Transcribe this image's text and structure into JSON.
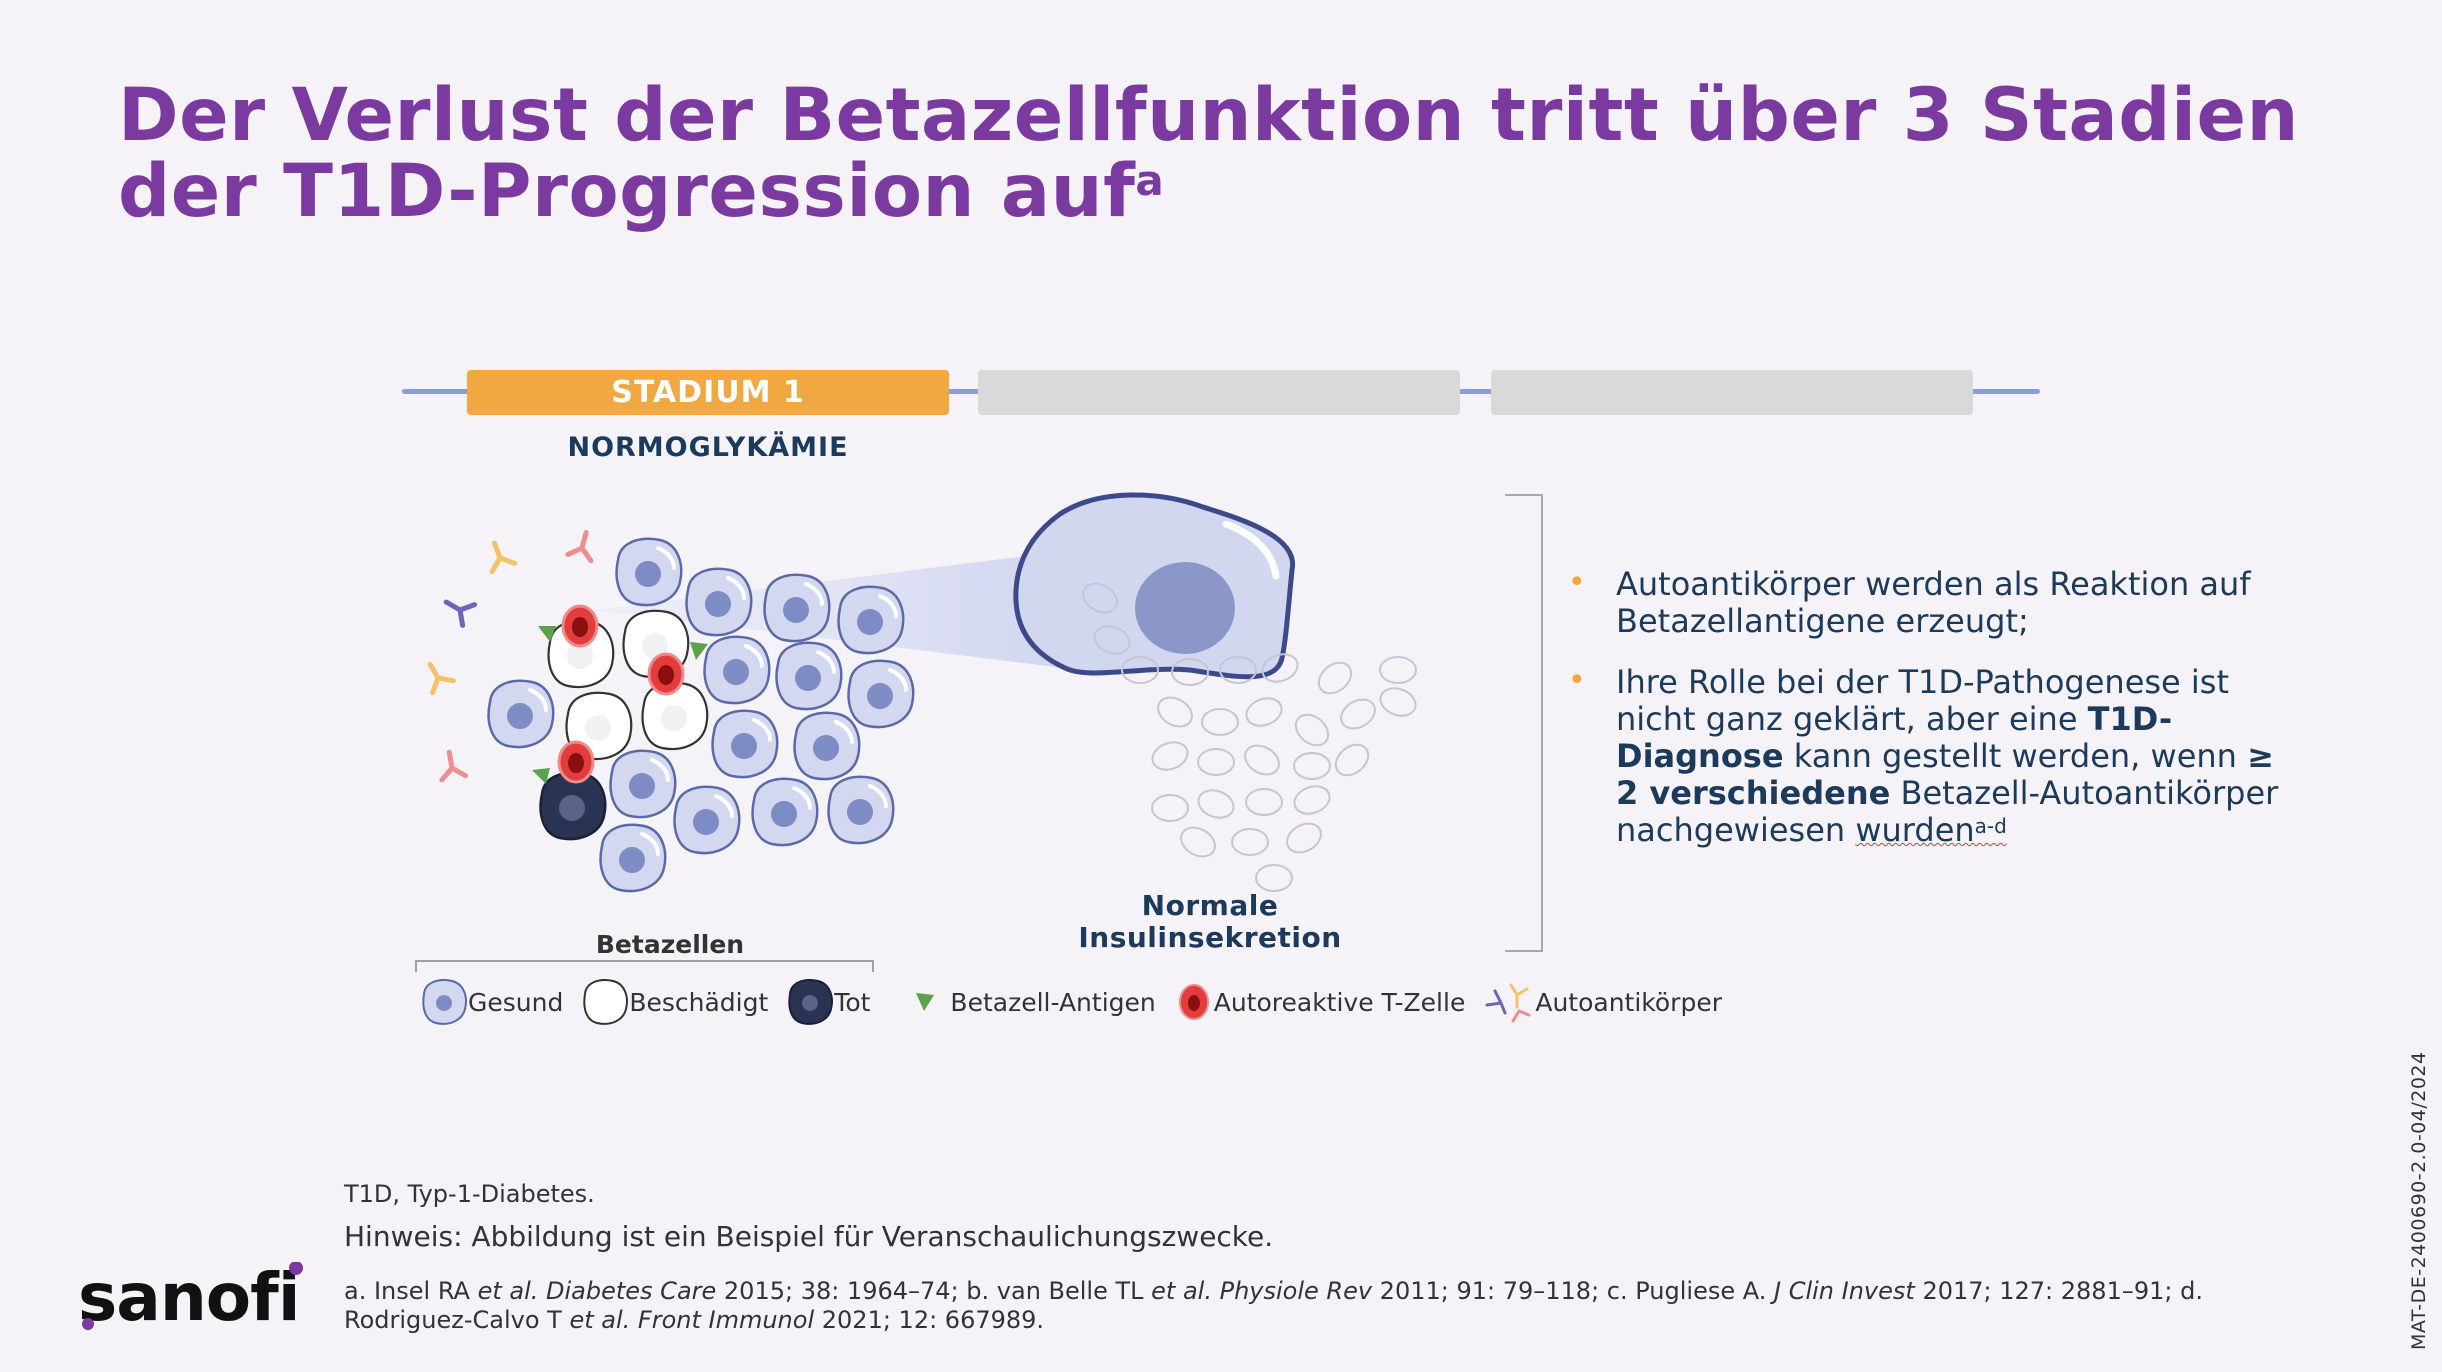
{
  "title": {
    "main": "Der Verlust der Betazellfunktion tritt über 3 Stadien der T1D-Progression auf",
    "sup": "a"
  },
  "timeline": {
    "stage_label": "STADIUM 1",
    "stage_subtitle": "NORMOGLYKÄMIE",
    "active_color": "#f2a840",
    "inactive_color": "#d9d9d9",
    "line_color": "#8c9ae0"
  },
  "diagram": {
    "cluster_label": "Betazellen",
    "normal_label_line1": "Normale",
    "normal_label_line2": "Insulinsekretion"
  },
  "legend": {
    "healthy": "Gesund",
    "damaged": "Beschädigt",
    "dead": "Tot",
    "antigen": "Betazell-Antigen",
    "tcell": "Autoreaktive T-Zelle",
    "antibody": "Autoantikörper"
  },
  "bullets": {
    "b1": "Autoantikörper werden als Reaktion auf Betazellantigene erzeugt;",
    "b2_part1": "Ihre Rolle bei der T1D-Pathogenese ist nicht ganz geklärt, aber eine",
    "b2_bold1": "T1D-Diagnose",
    "b2_part2": "kann gestellt werden, wenn",
    "b2_bold2": "≥ 2 verschiedene",
    "b2_part3": "Betazell-Autoantikörper nachgewiesen",
    "b2_last": "wurden",
    "b2_sup": "a-d"
  },
  "footnotes": {
    "abbr": "T1D, Typ-1-Diabetes.",
    "note": "Hinweis: Abbildung ist ein Beispiel für Veranschaulichungszwecke.",
    "ref_a": "a. Insel RA ",
    "ref_a_it": "et al. Diabetes Care",
    "ref_a_rest": " 2015; 38: 1964–74; b. van Belle TL ",
    "ref_b_it": "et al. Physiole Rev",
    "ref_b_rest": " 2011; 91: 79–118; c. Pugliese A. ",
    "ref_c_it": "J Clin Invest",
    "ref_c_rest": " 2017; 127: 2881–91; d. Rodriguez-Calvo T ",
    "ref_d_it": "et al. Front Immunol",
    "ref_d_rest": " 2021; 12: 667989."
  },
  "document_id": "MAT-DE-2400690-2.0-04/2024",
  "logo_text": "sanofi",
  "colors": {
    "title": "#7a3aa0",
    "navy": "#1b3a5c",
    "accent_orange": "#f2a840",
    "cell_healthy": "#c9cfeb",
    "cell_dead": "#2a3352",
    "tcell": "#e23c3c",
    "antigen": "#5aa34a"
  }
}
